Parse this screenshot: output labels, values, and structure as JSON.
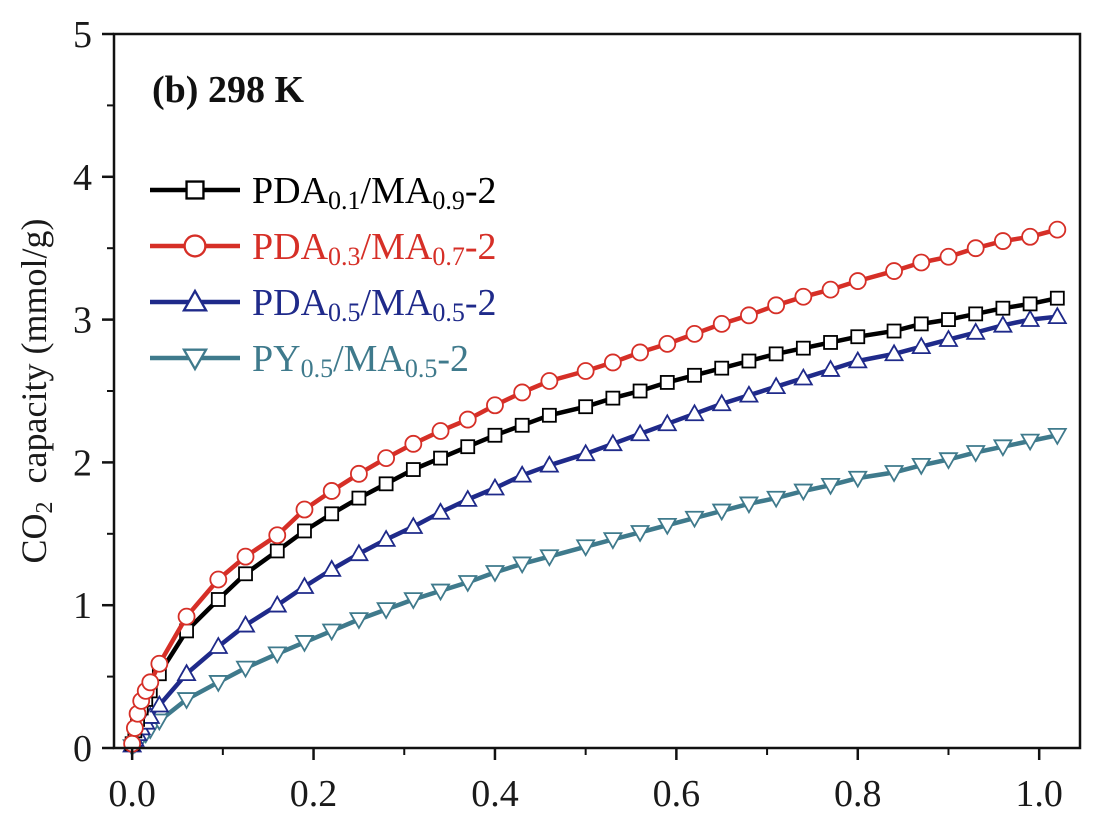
{
  "chart_data": {
    "type": "line",
    "annotation": "(b) 298 K",
    "ylabel_parts": [
      "CO",
      "2",
      "  capacity (mmol/g)"
    ],
    "xlabel": "",
    "xlim": [
      -0.02,
      1.045
    ],
    "ylim": [
      0,
      5
    ],
    "xticks": [
      0.0,
      0.2,
      0.4,
      0.6,
      0.8,
      1.0
    ],
    "xtick_labels": [
      "0.0",
      "0.2",
      "0.4",
      "0.6",
      "0.8",
      "1.0"
    ],
    "yticks": [
      0,
      1,
      2,
      3,
      4,
      5
    ],
    "ytick_labels": [
      "0",
      "1",
      "2",
      "3",
      "4",
      "5"
    ],
    "grid": false,
    "legend_position": "top-left",
    "x": [
      0.0,
      0.003,
      0.006,
      0.01,
      0.015,
      0.02,
      0.03,
      0.06,
      0.095,
      0.125,
      0.16,
      0.19,
      0.22,
      0.25,
      0.28,
      0.31,
      0.34,
      0.37,
      0.4,
      0.43,
      0.46,
      0.5,
      0.53,
      0.56,
      0.59,
      0.62,
      0.65,
      0.68,
      0.71,
      0.74,
      0.77,
      0.8,
      0.84,
      0.87,
      0.9,
      0.93,
      0.96,
      0.99,
      1.02
    ],
    "series": [
      {
        "name_parts": [
          "PDA",
          "0.1",
          "/MA",
          "0.9",
          "-2"
        ],
        "marker": "square",
        "color": "#000000",
        "values": [
          0.03,
          0.12,
          0.2,
          0.28,
          0.34,
          0.4,
          0.52,
          0.82,
          1.04,
          1.22,
          1.38,
          1.52,
          1.64,
          1.75,
          1.85,
          1.95,
          2.03,
          2.11,
          2.19,
          2.26,
          2.33,
          2.39,
          2.45,
          2.5,
          2.56,
          2.61,
          2.66,
          2.71,
          2.76,
          2.8,
          2.84,
          2.88,
          2.92,
          2.97,
          3.0,
          3.04,
          3.08,
          3.11,
          3.15
        ]
      },
      {
        "name_parts": [
          "PDA",
          "0.3",
          "/MA",
          "0.7",
          "-2"
        ],
        "marker": "circle",
        "color": "#d62f27",
        "values": [
          0.03,
          0.14,
          0.24,
          0.33,
          0.4,
          0.46,
          0.59,
          0.92,
          1.18,
          1.34,
          1.49,
          1.67,
          1.8,
          1.92,
          2.03,
          2.13,
          2.22,
          2.3,
          2.4,
          2.49,
          2.57,
          2.64,
          2.7,
          2.77,
          2.83,
          2.9,
          2.97,
          3.03,
          3.1,
          3.16,
          3.21,
          3.27,
          3.34,
          3.4,
          3.44,
          3.5,
          3.55,
          3.58,
          3.63
        ]
      },
      {
        "name_parts": [
          "PDA",
          "0.5",
          "/MA",
          "0.5",
          "-2"
        ],
        "marker": "triangle-up",
        "color": "#1f2a8a",
        "values": [
          0.02,
          0.06,
          0.1,
          0.14,
          0.18,
          0.22,
          0.3,
          0.52,
          0.71,
          0.86,
          1.0,
          1.13,
          1.25,
          1.36,
          1.46,
          1.55,
          1.65,
          1.74,
          1.82,
          1.91,
          1.98,
          2.06,
          2.13,
          2.2,
          2.27,
          2.34,
          2.41,
          2.47,
          2.53,
          2.59,
          2.65,
          2.71,
          2.76,
          2.81,
          2.86,
          2.91,
          2.96,
          3.0,
          3.02
        ]
      },
      {
        "name_parts": [
          "PY",
          "0.5",
          "/MA",
          "0.5",
          "-2"
        ],
        "marker": "triangle-down",
        "color": "#3f7a8c",
        "values": [
          0.01,
          0.03,
          0.05,
          0.07,
          0.1,
          0.13,
          0.19,
          0.34,
          0.46,
          0.56,
          0.66,
          0.74,
          0.82,
          0.9,
          0.97,
          1.04,
          1.1,
          1.16,
          1.23,
          1.29,
          1.34,
          1.41,
          1.46,
          1.51,
          1.56,
          1.61,
          1.66,
          1.71,
          1.75,
          1.8,
          1.84,
          1.89,
          1.93,
          1.98,
          2.02,
          2.07,
          2.11,
          2.15,
          2.19
        ]
      }
    ]
  }
}
